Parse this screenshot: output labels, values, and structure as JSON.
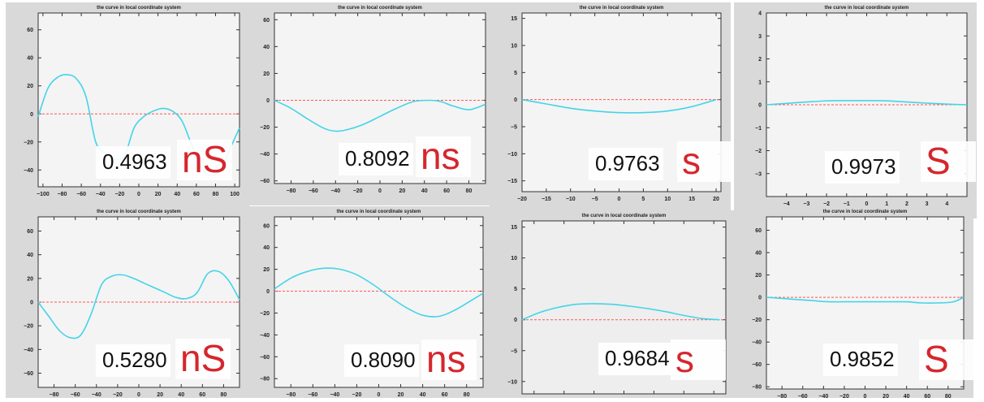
{
  "chart_data": [
    {
      "type": "line",
      "title": "the curve in local coordinate system",
      "xlim": [
        -105,
        105
      ],
      "ylim": [
        -52,
        72
      ],
      "xticks": [
        -100,
        -80,
        -60,
        -40,
        -20,
        0,
        20,
        40,
        60,
        80,
        100
      ],
      "yticks": [
        60,
        40,
        20,
        0,
        -20,
        -40
      ],
      "x": [
        -105,
        -95,
        -85,
        -75,
        -65,
        -55,
        -45,
        -35,
        -25,
        -15,
        -5,
        5,
        15,
        25,
        35,
        45,
        55,
        65,
        75,
        85,
        95,
        105
      ],
      "y": [
        -2,
        18,
        26,
        28,
        25,
        12,
        -20,
        -28,
        -32,
        -30,
        -10,
        -2,
        2,
        4,
        2,
        -5,
        -22,
        -38,
        -44,
        -40,
        -25,
        -10
      ],
      "reference": 0,
      "score": "0.4963",
      "label": "nS",
      "background": "#f4f4f4"
    },
    {
      "type": "line",
      "title": "the curve in local coordinate system",
      "xlim": [
        -95,
        95
      ],
      "ylim": [
        -62,
        65
      ],
      "xticks": [
        -80,
        -60,
        -40,
        -20,
        0,
        20,
        40,
        60,
        80
      ],
      "yticks": [
        60,
        40,
        20,
        0,
        -20,
        -40,
        -60
      ],
      "x": [
        -95,
        -80,
        -65,
        -50,
        -40,
        -30,
        -15,
        0,
        15,
        30,
        45,
        55,
        65,
        80,
        95
      ],
      "y": [
        0,
        -6,
        -14,
        -21,
        -23,
        -22,
        -18,
        -12,
        -6,
        -1,
        0,
        -1,
        -4,
        -7,
        -3
      ],
      "reference": 0,
      "score": "0.8092",
      "label": "ns",
      "background": "#f4f4f4"
    },
    {
      "type": "line",
      "title": "the curve in local coordinate system",
      "xlim": [
        -20,
        21
      ],
      "ylim": [
        -17,
        16
      ],
      "xticks": [
        -20,
        -15,
        -10,
        -5,
        0,
        5,
        10,
        15,
        20
      ],
      "yticks": [
        15,
        10,
        5,
        0,
        -5,
        -10,
        -15
      ],
      "x": [
        -20,
        -15,
        -10,
        -5,
        0,
        5,
        10,
        15,
        20
      ],
      "y": [
        0,
        -0.8,
        -1.6,
        -2.1,
        -2.4,
        -2.4,
        -2.1,
        -1.3,
        0
      ],
      "reference": 0,
      "score": "0.9763",
      "label": "s",
      "background": "#f4f4f4"
    },
    {
      "type": "line",
      "title": "the curve in local coordinate system",
      "xlim": [
        -5,
        5
      ],
      "ylim": [
        -4,
        4
      ],
      "xticks": [
        -4,
        -3,
        -2,
        -1,
        0,
        1,
        2,
        3,
        4
      ],
      "yticks": [
        4,
        3,
        2,
        1,
        0,
        -1,
        -2,
        -3
      ],
      "x": [
        -5,
        -4,
        -3,
        -2,
        -1,
        0,
        1,
        2,
        3,
        4,
        5
      ],
      "y": [
        0,
        0.06,
        0.12,
        0.17,
        0.18,
        0.18,
        0.17,
        0.12,
        0.07,
        0.03,
        0
      ],
      "reference": 0,
      "score": "0.9973",
      "label": "S",
      "background": "#f4f4f4"
    },
    {
      "type": "line",
      "title": "the curve in local coordinate system",
      "xlim": [
        -95,
        95
      ],
      "ylim": [
        -72,
        72
      ],
      "xticks": [
        -80,
        -60,
        -40,
        -20,
        0,
        20,
        40,
        60,
        80
      ],
      "yticks": [
        60,
        40,
        20,
        0,
        -20,
        -40,
        -60
      ],
      "x": [
        -95,
        -85,
        -75,
        -65,
        -55,
        -45,
        -35,
        -25,
        -15,
        -5,
        5,
        15,
        25,
        35,
        45,
        55,
        65,
        75,
        85,
        95
      ],
      "y": [
        0,
        -12,
        -24,
        -30,
        -28,
        -10,
        15,
        22,
        23,
        20,
        16,
        12,
        8,
        4,
        3,
        8,
        24,
        26,
        18,
        2
      ],
      "reference": 0,
      "score": "0.5280",
      "label": "nS",
      "background": "#f4f4f4"
    },
    {
      "type": "line",
      "title": "the curve in local coordinate system",
      "xlim": [
        -95,
        95
      ],
      "ylim": [
        -88,
        68
      ],
      "xticks": [
        -80,
        -60,
        -40,
        -20,
        0,
        20,
        40,
        60,
        80
      ],
      "yticks": [
        60,
        40,
        20,
        0,
        -20,
        -40,
        -60,
        -80
      ],
      "x": [
        -95,
        -80,
        -65,
        -50,
        -35,
        -20,
        -5,
        10,
        25,
        40,
        55,
        70,
        85,
        95
      ],
      "y": [
        2,
        12,
        18,
        21,
        20,
        15,
        6,
        -5,
        -15,
        -22,
        -23,
        -17,
        -8,
        -2
      ],
      "reference": 0,
      "score": "0.8090",
      "label": "ns",
      "background": "#f4f4f4"
    },
    {
      "type": "line",
      "title": "the curve in local coordinate system",
      "xlim": [
        -17,
        17
      ],
      "ylim": [
        -12,
        16
      ],
      "xticks": [
        -15,
        -10,
        -5,
        0,
        5,
        10,
        15
      ],
      "yticks": [
        15,
        10,
        5,
        0,
        -5,
        -10
      ],
      "x": [
        -17,
        -14,
        -11,
        -8,
        -5,
        -2,
        1,
        4,
        7,
        10,
        13,
        16
      ],
      "y": [
        0,
        1.2,
        2.0,
        2.5,
        2.6,
        2.5,
        2.2,
        1.8,
        1.3,
        0.7,
        0.2,
        0
      ],
      "reference": 0,
      "score": "0.9684",
      "label": "s",
      "background": "#eeeeee"
    },
    {
      "type": "line",
      "title": "the curve in local coordinate system",
      "xlim": [
        -95,
        95
      ],
      "ylim": [
        -82,
        72
      ],
      "xticks": [
        -80,
        -60,
        -40,
        -20,
        0,
        20,
        40,
        60,
        80
      ],
      "yticks": [
        60,
        40,
        20,
        0,
        -20,
        -40,
        -60,
        -80
      ],
      "x": [
        -95,
        -80,
        -65,
        -50,
        -35,
        -20,
        -5,
        10,
        25,
        40,
        55,
        70,
        85,
        95
      ],
      "y": [
        0,
        -1,
        -2,
        -3,
        -4,
        -4,
        -4,
        -4,
        -4,
        -4,
        -5,
        -5,
        -4,
        0
      ],
      "reference": 0,
      "score": "0.9852",
      "label": "S",
      "background": "#f4f4f4"
    }
  ]
}
